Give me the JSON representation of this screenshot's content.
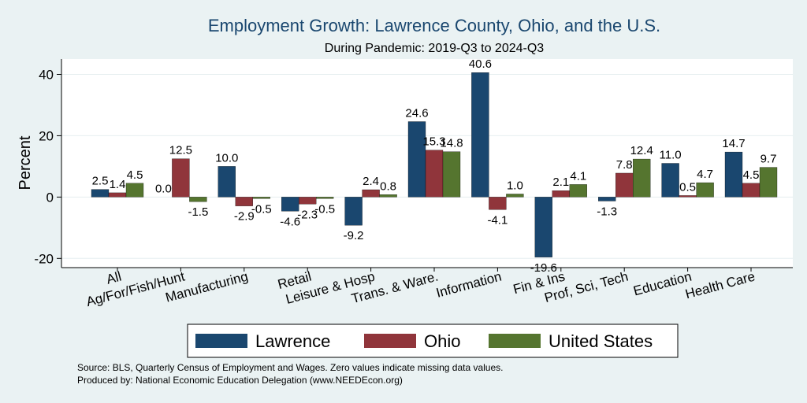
{
  "chart_data": {
    "type": "bar",
    "title": "Employment Growth: Lawrence County, Ohio, and the U.S.",
    "subtitle": "During Pandemic: 2019-Q3 to 2024-Q3",
    "ylabel": "Percent",
    "xlabel": "",
    "ylim": [
      -23,
      45
    ],
    "yticks": [
      -20,
      0,
      20,
      40
    ],
    "grid": true,
    "legend_position": "bottom",
    "categories": [
      "All",
      "Ag/For/Fish/Hunt",
      "Manufacturing",
      "Retail",
      "Leisure & Hosp",
      "Trans. & Ware.",
      "Information",
      "Fin & Ins",
      "Prof, Sci, Tech",
      "Education",
      "Health Care"
    ],
    "series": [
      {
        "name": "Lawrence",
        "color": "#1a476f",
        "values": [
          2.5,
          0.0,
          10.0,
          -4.6,
          -9.2,
          24.6,
          40.6,
          -19.6,
          -1.3,
          11.0,
          14.7
        ]
      },
      {
        "name": "Ohio",
        "color": "#90353b",
        "values": [
          1.4,
          12.5,
          -2.9,
          -2.3,
          2.4,
          15.3,
          -4.1,
          2.1,
          7.8,
          0.5,
          4.5
        ]
      },
      {
        "name": "United States",
        "color": "#55752f",
        "values": [
          4.5,
          -1.5,
          -0.5,
          -0.5,
          0.8,
          14.8,
          1.0,
          4.1,
          12.4,
          4.7,
          9.7
        ]
      }
    ]
  },
  "footer": {
    "source": "Source: BLS, Quarterly Census of Employment and Wages. Zero values indicate missing data values.",
    "produced": "Produced by: National Economic Education Delegation (www.NEEDEcon.org)"
  }
}
